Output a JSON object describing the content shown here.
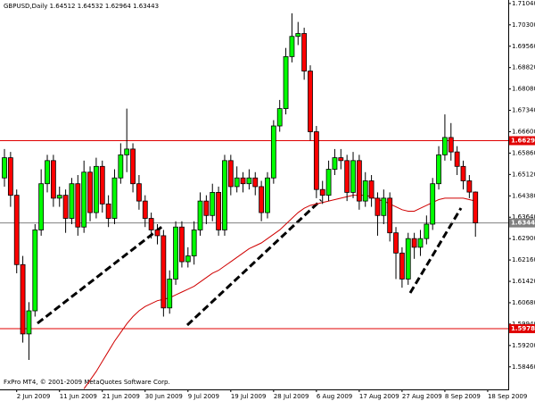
{
  "chart_data": {
    "type": "candlestick",
    "title": "GBPUSD,Daily  1.64512 1.64532 1.62964 1.63443",
    "footer": "FxPro MT4, © 2001-2009 MetaQuotes Software Corp.",
    "categories": [
      null,
      null,
      "2 Jun 2009",
      null,
      null,
      null,
      null,
      null,
      null,
      "11 Jun 2009",
      null,
      null,
      null,
      null,
      null,
      null,
      "21 Jun 2009",
      null,
      null,
      null,
      null,
      null,
      null,
      "30 Jun 2009",
      null,
      null,
      null,
      null,
      null,
      null,
      "9 Jul 2009",
      null,
      null,
      null,
      null,
      null,
      null,
      "19 Jul 2009",
      null,
      null,
      null,
      null,
      null,
      null,
      "28 Jul 2009",
      null,
      null,
      null,
      null,
      null,
      null,
      "6 Aug 2009",
      null,
      null,
      null,
      null,
      null,
      null,
      "17 Aug 2009",
      null,
      null,
      null,
      null,
      null,
      null,
      "27 Aug 2009",
      null,
      null,
      null,
      null,
      null,
      null,
      "8 Sep 2009",
      null,
      null,
      null,
      null,
      null,
      null,
      "18 Sep 2009"
    ],
    "open": [
      1.65,
      1.657,
      1.644,
      1.62,
      1.596,
      1.604,
      1.632,
      1.648,
      1.656,
      1.643,
      1.644,
      1.636,
      1.648,
      1.633,
      1.652,
      1.638,
      1.654,
      1.641,
      1.636,
      1.65,
      1.658,
      1.66,
      1.648,
      1.642,
      1.636,
      1.632,
      1.63,
      1.605,
      1.615,
      1.633,
      1.621,
      1.623,
      1.632,
      1.642,
      1.637,
      1.645,
      1.632,
      1.656,
      1.647,
      1.65,
      1.648,
      1.65,
      1.647,
      1.638,
      1.65,
      1.668,
      1.674,
      1.692,
      1.699,
      1.7,
      1.687,
      1.666,
      1.646,
      1.644,
      1.653,
      1.657,
      1.656,
      1.645,
      1.656,
      1.642,
      1.649,
      1.643,
      1.637,
      1.643,
      1.631,
      1.624,
      1.615,
      1.629,
      1.626,
      1.629,
      1.634,
      1.648,
      1.658,
      1.664,
      1.659,
      1.654,
      1.649,
      1.64512,
      null,
      null
    ],
    "high": [
      1.66,
      1.659,
      1.646,
      1.623,
      1.607,
      1.634,
      1.653,
      1.658,
      1.658,
      1.647,
      1.646,
      1.65,
      1.651,
      1.656,
      1.654,
      1.657,
      1.656,
      1.644,
      1.653,
      1.662,
      1.674,
      1.662,
      1.651,
      1.644,
      1.638,
      1.634,
      1.632,
      1.618,
      1.635,
      1.635,
      1.626,
      1.635,
      1.645,
      1.644,
      1.648,
      1.647,
      1.658,
      1.658,
      1.654,
      1.652,
      1.653,
      1.652,
      1.649,
      1.652,
      1.67,
      1.677,
      1.695,
      1.707,
      1.704,
      1.702,
      1.689,
      1.668,
      1.649,
      1.656,
      1.66,
      1.66,
      1.658,
      1.659,
      1.658,
      1.652,
      1.651,
      1.645,
      1.646,
      1.645,
      1.633,
      1.626,
      1.631,
      1.631,
      1.632,
      1.637,
      1.65,
      1.661,
      1.672,
      1.669,
      1.661,
      1.656,
      1.651,
      1.64532,
      null,
      null
    ],
    "low": [
      1.647,
      1.64,
      1.617,
      1.593,
      1.587,
      1.602,
      1.63,
      1.645,
      1.64,
      1.64,
      1.631,
      1.634,
      1.63,
      1.631,
      1.635,
      1.636,
      1.638,
      1.633,
      1.634,
      1.648,
      1.652,
      1.645,
      1.639,
      1.633,
      1.629,
      1.627,
      1.602,
      1.603,
      1.613,
      1.619,
      1.619,
      1.62,
      1.63,
      1.634,
      1.635,
      1.63,
      1.63,
      1.644,
      1.645,
      1.645,
      1.646,
      1.644,
      1.635,
      1.636,
      1.648,
      1.666,
      1.672,
      1.69,
      1.696,
      1.684,
      1.663,
      1.643,
      1.641,
      1.642,
      1.651,
      1.653,
      1.642,
      1.643,
      1.639,
      1.64,
      1.64,
      1.63,
      1.634,
      1.628,
      1.615,
      1.612,
      1.613,
      1.622,
      1.623,
      1.627,
      1.632,
      1.646,
      1.656,
      1.656,
      1.651,
      1.646,
      1.643,
      1.62964,
      null,
      null
    ],
    "close": [
      1.657,
      1.644,
      1.62,
      1.596,
      1.604,
      1.632,
      1.648,
      1.656,
      1.643,
      1.644,
      1.636,
      1.648,
      1.633,
      1.652,
      1.638,
      1.654,
      1.641,
      1.636,
      1.65,
      1.658,
      1.66,
      1.648,
      1.642,
      1.636,
      1.632,
      1.63,
      1.605,
      1.615,
      1.633,
      1.621,
      1.623,
      1.632,
      1.642,
      1.637,
      1.645,
      1.632,
      1.656,
      1.647,
      1.65,
      1.648,
      1.65,
      1.647,
      1.638,
      1.65,
      1.668,
      1.674,
      1.692,
      1.699,
      1.7,
      1.687,
      1.666,
      1.646,
      1.644,
      1.653,
      1.657,
      1.656,
      1.645,
      1.656,
      1.642,
      1.649,
      1.643,
      1.637,
      1.643,
      1.631,
      1.624,
      1.615,
      1.629,
      1.626,
      1.629,
      1.634,
      1.648,
      1.658,
      1.664,
      1.659,
      1.654,
      1.649,
      1.6451,
      1.63443,
      null,
      null
    ],
    "moving_average": {
      "color": "#d00000",
      "values": [
        null,
        null,
        null,
        null,
        null,
        null,
        null,
        null,
        null,
        null,
        null,
        null,
        null,
        1.577,
        1.58,
        1.583,
        1.5865,
        1.59,
        1.5935,
        1.5965,
        1.5995,
        1.602,
        1.604,
        1.6055,
        1.6065,
        1.6075,
        1.608,
        1.6085,
        1.6095,
        1.6105,
        1.6115,
        1.6125,
        1.614,
        1.6155,
        1.617,
        1.618,
        1.6195,
        1.621,
        1.6225,
        1.624,
        1.6255,
        1.6265,
        1.6275,
        1.629,
        1.6305,
        1.632,
        1.634,
        1.636,
        1.638,
        1.6395,
        1.6405,
        1.641,
        1.6415,
        1.642,
        1.6425,
        1.643,
        1.6435,
        1.644,
        1.644,
        1.644,
        1.6435,
        1.6425,
        1.642,
        1.641,
        1.64,
        1.639,
        1.6385,
        1.6385,
        1.6395,
        1.6405,
        1.6415,
        1.6425,
        1.643,
        1.643,
        1.643,
        1.643,
        1.6425,
        1.642,
        null,
        null
      ]
    },
    "up_color": "#00ff00",
    "down_color": "#ff0000",
    "ylim": [
      1.5768,
      1.7116
    ],
    "yticks": [
      {
        "value": 1.7104,
        "label": "1.71040"
      },
      {
        "value": 1.703,
        "label": "1.70300"
      },
      {
        "value": 1.6956,
        "label": "1.69560"
      },
      {
        "value": 1.6882,
        "label": "1.68820"
      },
      {
        "value": 1.6808,
        "label": "1.68080"
      },
      {
        "value": 1.6734,
        "label": "1.67340"
      },
      {
        "value": 1.666,
        "label": "1.66600"
      },
      {
        "value": 1.6586,
        "label": "1.65860"
      },
      {
        "value": 1.6512,
        "label": "1.65120"
      },
      {
        "value": 1.6438,
        "label": "1.64380"
      },
      {
        "value": 1.6364,
        "label": "1.63640"
      },
      {
        "value": 1.629,
        "label": "1.62900"
      },
      {
        "value": 1.6216,
        "label": "1.62160"
      },
      {
        "value": 1.6142,
        "label": "1.61420"
      },
      {
        "value": 1.6068,
        "label": "1.60680"
      },
      {
        "value": 1.5994,
        "label": "1.59940"
      },
      {
        "value": 1.592,
        "label": "1.59200"
      },
      {
        "value": 1.5846,
        "label": "1.58460"
      }
    ],
    "levels": [
      {
        "value": 1.6629,
        "label": "1.66290",
        "color": "#e00000"
      },
      {
        "value": 1.59781,
        "label": "1.59781",
        "color": "#e00000"
      },
      {
        "value": 1.63443,
        "label": "1.63443",
        "color": "#808080"
      }
    ]
  }
}
